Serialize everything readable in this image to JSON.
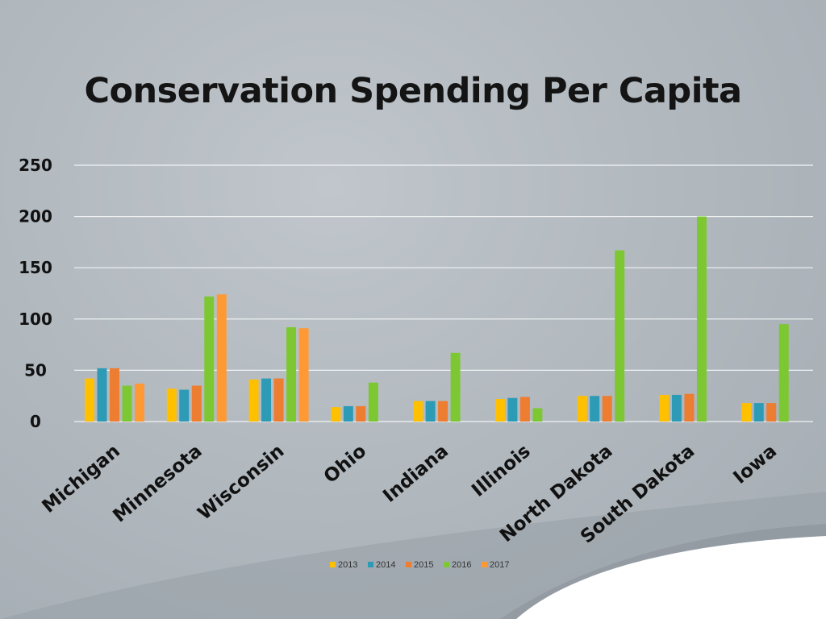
{
  "chart_data": {
    "type": "bar",
    "title": "Conservation Spending Per Capita",
    "categories": [
      "Michigan",
      "Minnesota",
      "Wisconsin",
      "Ohio",
      "Indiana",
      "Illinois",
      "North Dakota",
      "South Dakota",
      "Iowa"
    ],
    "series": [
      {
        "name": "2013",
        "color": "#ffc000",
        "values": [
          42,
          32,
          41,
          14,
          20,
          22,
          25,
          26,
          18
        ]
      },
      {
        "name": "2014",
        "color": "#2e9bb6",
        "values": [
          52,
          31,
          42,
          15,
          20,
          23,
          25,
          26,
          18
        ]
      },
      {
        "name": "2015",
        "color": "#ed7d31",
        "values": [
          52,
          35,
          42,
          15,
          20,
          24,
          25,
          27,
          18
        ]
      },
      {
        "name": "2016",
        "color": "#7dc832",
        "values": [
          35,
          122,
          92,
          38,
          67,
          13,
          167,
          200,
          95
        ]
      },
      {
        "name": "2017",
        "color": "#ff9933",
        "values": [
          37,
          124,
          91,
          null,
          null,
          null,
          null,
          null,
          null
        ]
      }
    ],
    "yticks": [
      0,
      50,
      100,
      150,
      200,
      250
    ],
    "ylim": [
      0,
      250
    ],
    "grid": true,
    "legend_position": "bottom",
    "xlabel": "",
    "ylabel": ""
  }
}
